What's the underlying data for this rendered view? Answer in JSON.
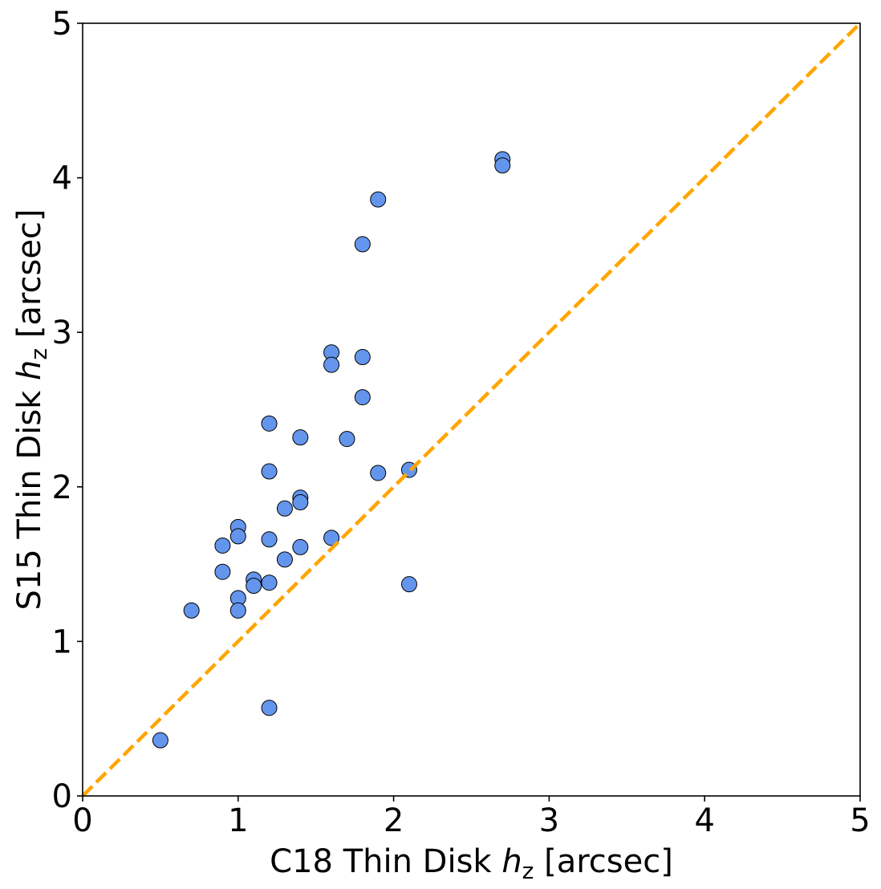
{
  "chart_data": {
    "type": "scatter",
    "title": "",
    "xlabel": {
      "prefix": "C18 Thin Disk ",
      "var": "h",
      "sub": "z",
      "suffix": " [arcsec]"
    },
    "ylabel": {
      "prefix": "S15 Thin Disk ",
      "var": "h",
      "sub": "z",
      "suffix": " [arcsec]"
    },
    "xlim": [
      0,
      5
    ],
    "ylim": [
      0,
      5
    ],
    "xticks": [
      0,
      1,
      2,
      3,
      4,
      5
    ],
    "yticks": [
      0,
      1,
      2,
      3,
      4,
      5
    ],
    "xtick_labels": [
      "0",
      "1",
      "2",
      "3",
      "4",
      "5"
    ],
    "ytick_labels": [
      "0",
      "1",
      "2",
      "3",
      "4",
      "5"
    ],
    "grid": false,
    "legend": false,
    "colors": {
      "marker_fill": "#6495ED",
      "marker_edge": "#000000",
      "reference_line": "#FFA500"
    },
    "reference_line": {
      "name": "one-to-one",
      "style": "dashed",
      "x": [
        0,
        5
      ],
      "y": [
        0,
        5
      ]
    },
    "series": [
      {
        "name": "galaxies",
        "x": [
          2.7,
          2.7,
          1.9,
          1.8,
          1.6,
          1.8,
          1.6,
          1.8,
          1.2,
          1.4,
          1.7,
          1.2,
          1.9,
          2.1,
          1.4,
          1.4,
          1.3,
          1.0,
          1.0,
          1.2,
          1.6,
          0.9,
          1.4,
          1.3,
          0.9,
          1.1,
          1.1,
          1.2,
          2.1,
          1.0,
          0.7,
          1.0,
          1.2,
          0.5
        ],
        "y": [
          4.12,
          4.08,
          3.86,
          3.57,
          2.87,
          2.84,
          2.79,
          2.58,
          2.41,
          2.32,
          2.31,
          2.1,
          2.09,
          2.11,
          1.93,
          1.9,
          1.86,
          1.74,
          1.68,
          1.66,
          1.67,
          1.62,
          1.61,
          1.53,
          1.45,
          1.4,
          1.36,
          1.38,
          1.37,
          1.28,
          1.2,
          1.2,
          0.57,
          0.36
        ]
      }
    ]
  }
}
